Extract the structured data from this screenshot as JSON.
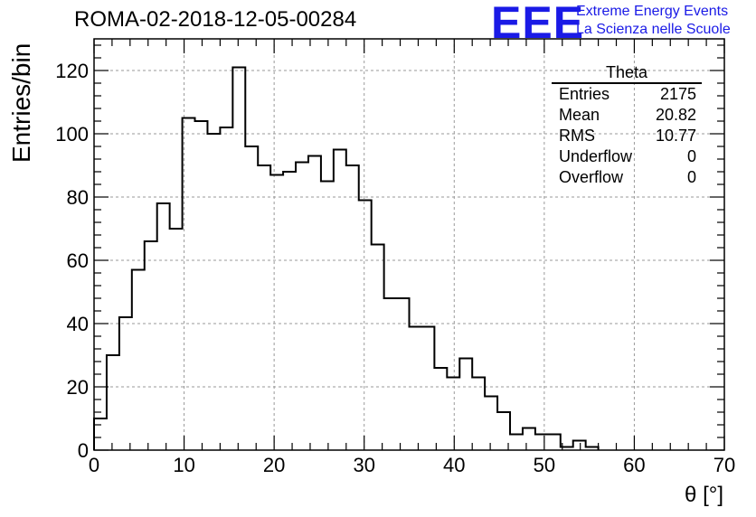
{
  "header": {
    "run_title": "ROMA-02-2018-12-05-00284",
    "logo_text": "EEE",
    "logo_line1": "Extreme Energy Events",
    "logo_line2": "La Scienza nelle Scuole"
  },
  "stats": {
    "title": "Theta",
    "rows": [
      {
        "label": "Entries",
        "value": "2175"
      },
      {
        "label": "Mean",
        "value": "20.82"
      },
      {
        "label": "RMS",
        "value": "10.77"
      },
      {
        "label": "Underflow",
        "value": "0"
      },
      {
        "label": "Overflow",
        "value": "0"
      }
    ]
  },
  "colors": {
    "histogram": "#000000",
    "grid": "#9a9a9a",
    "logo": "#1a1ae6"
  },
  "chart_data": {
    "type": "bar",
    "title": "ROMA-02-2018-12-05-00284",
    "xlabel": "θ [°]",
    "ylabel": "Entries/bin",
    "xlim": [
      0,
      70
    ],
    "ylim": [
      0,
      130
    ],
    "grid": true,
    "bin_width": 1.4,
    "bin_start": 0,
    "x_ticks": [
      0,
      10,
      20,
      30,
      40,
      50,
      60,
      70
    ],
    "y_ticks": [
      0,
      20,
      40,
      60,
      80,
      100,
      120
    ],
    "values": [
      10,
      30,
      42,
      57,
      66,
      78,
      70,
      105,
      104,
      100,
      102,
      121,
      96,
      90,
      87,
      88,
      91,
      93,
      85,
      95,
      90,
      79,
      65,
      48,
      48,
      39,
      39,
      26,
      23,
      29,
      23,
      17,
      12,
      5,
      7,
      5,
      5,
      1,
      3,
      1
    ]
  }
}
